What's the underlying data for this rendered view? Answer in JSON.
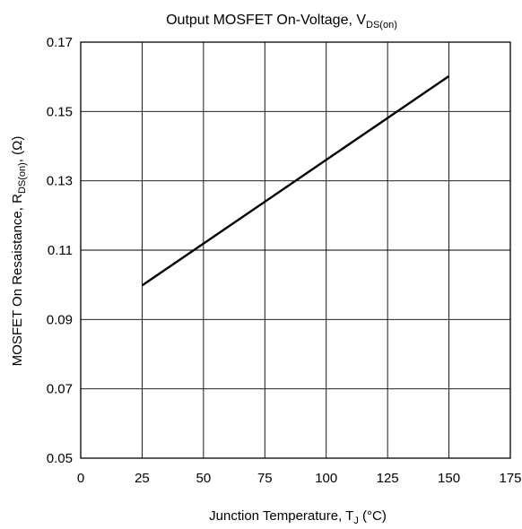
{
  "chart_data": {
    "type": "line",
    "title": {
      "main": "Output MOSFET On-Voltage, V",
      "sub": "DS(on)"
    },
    "xlabel": {
      "main": "Junction Temperature, T",
      "sub": "J",
      "suffix": " (°C)"
    },
    "ylabel": {
      "main": "MOSFET On Resaistance, R",
      "sub": "DS(on)",
      "suffix": ", (Ω)"
    },
    "xlim": [
      0,
      175
    ],
    "ylim": [
      0.05,
      0.17
    ],
    "xticks": [
      0,
      25,
      50,
      75,
      100,
      125,
      150,
      175
    ],
    "xtick_labels": [
      "0",
      "25",
      "50",
      "75",
      "100",
      "125",
      "150",
      "175"
    ],
    "yticks": [
      0.05,
      0.07,
      0.09,
      0.11,
      0.13,
      0.15,
      0.17
    ],
    "ytick_labels": [
      "0.05",
      "0.07",
      "0.09",
      "0.11",
      "0.13",
      "0.15",
      "0.17"
    ],
    "grid": true,
    "series": [
      {
        "x": [
          25,
          150
        ],
        "y": [
          0.0998,
          0.1602
        ]
      }
    ],
    "colors": {
      "line": "#000000",
      "grid": "#000000",
      "background": "#ffffff"
    }
  }
}
